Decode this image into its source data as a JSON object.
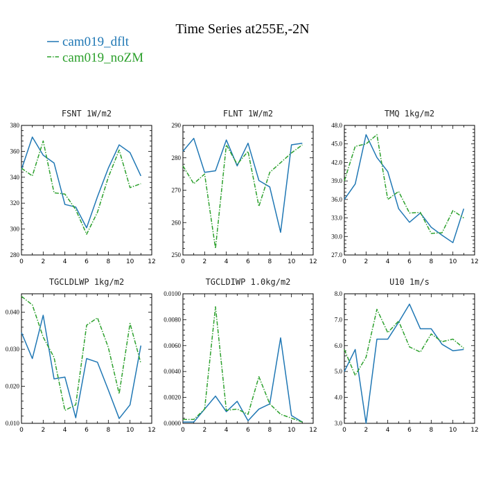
{
  "title": "Time Series at255E,-2N",
  "legend": [
    {
      "name": "cam019_dflt",
      "color": "#1f77b4",
      "dash": "solid"
    },
    {
      "name": "cam019_noZM",
      "color": "#2ca02c",
      "dash": "dashdot"
    }
  ],
  "chart_data": [
    {
      "type": "line",
      "title": "FSNT  1W/m2",
      "x": [
        0,
        1,
        2,
        3,
        4,
        5,
        6,
        7,
        8,
        9,
        10,
        11
      ],
      "xlim": [
        0,
        12
      ],
      "xticks": [
        0,
        2,
        4,
        6,
        8,
        10,
        12
      ],
      "xtick_labels": [
        "0",
        "2",
        "4",
        "6",
        "8",
        "10",
        "12"
      ],
      "ylim": [
        280,
        380
      ],
      "yticks": [
        280,
        300,
        320,
        340,
        360,
        380
      ],
      "ytick_labels": [
        "280",
        "300",
        "320",
        "340",
        "360",
        "380"
      ],
      "series": [
        {
          "name": "cam019_dflt",
          "values": [
            346,
            371,
            357,
            351,
            319,
            317,
            301,
            325,
            347,
            365,
            359,
            341
          ]
        },
        {
          "name": "cam019_noZM",
          "values": [
            347,
            341,
            368,
            328,
            327,
            315,
            296,
            313,
            340,
            361,
            332,
            335
          ]
        }
      ]
    },
    {
      "type": "line",
      "title": "FLNT  1W/m2",
      "x": [
        0,
        1,
        2,
        3,
        4,
        5,
        6,
        7,
        8,
        9,
        10,
        11
      ],
      "xlim": [
        0,
        12
      ],
      "xticks": [
        0,
        2,
        4,
        6,
        8,
        10,
        12
      ],
      "xtick_labels": [
        "0",
        "2",
        "4",
        "6",
        "8",
        "10",
        "12"
      ],
      "ylim": [
        250,
        290
      ],
      "yticks": [
        250,
        260,
        270,
        280,
        290
      ],
      "ytick_labels": [
        "250",
        "260",
        "270",
        "280",
        "290"
      ],
      "series": [
        {
          "name": "cam019_dflt",
          "values": [
            282,
            286,
            275.5,
            276,
            285.5,
            277.5,
            284.5,
            273,
            271,
            257,
            284,
            284.5
          ]
        },
        {
          "name": "cam019_noZM",
          "values": [
            277.5,
            272,
            275,
            252,
            284,
            278,
            282,
            265,
            275.5,
            278.5,
            281.5,
            284
          ]
        }
      ]
    },
    {
      "type": "line",
      "title": "TMQ  1kg/m2",
      "x": [
        0,
        1,
        2,
        3,
        4,
        5,
        6,
        7,
        8,
        9,
        10,
        11
      ],
      "xlim": [
        0,
        12
      ],
      "xticks": [
        0,
        2,
        4,
        6,
        8,
        10,
        12
      ],
      "xtick_labels": [
        "0",
        "2",
        "4",
        "6",
        "8",
        "10",
        "12"
      ],
      "ylim": [
        27,
        48
      ],
      "yticks": [
        27,
        30,
        33,
        36,
        39,
        42,
        45,
        48
      ],
      "ytick_labels": [
        "27.0",
        "30.0",
        "33.0",
        "36.0",
        "39.0",
        "42.0",
        "45.0",
        "48.0"
      ],
      "series": [
        {
          "name": "cam019_dflt",
          "values": [
            36,
            38.5,
            46.5,
            42.8,
            40.5,
            34.5,
            32.3,
            33.8,
            31.5,
            30.2,
            29,
            34.5
          ]
        },
        {
          "name": "cam019_noZM",
          "values": [
            39,
            44.6,
            45,
            46.5,
            36,
            37.3,
            33.8,
            33.9,
            30.5,
            30.6,
            34.2,
            33
          ]
        }
      ]
    },
    {
      "type": "line",
      "title": "TGCLDLWP  1kg/m2",
      "x": [
        0,
        1,
        2,
        3,
        4,
        5,
        6,
        7,
        8,
        9,
        10,
        11
      ],
      "xlim": [
        0,
        12
      ],
      "xticks": [
        0,
        2,
        4,
        6,
        8,
        10,
        12
      ],
      "xtick_labels": [
        "0",
        "2",
        "4",
        "6",
        "8",
        "10",
        "12"
      ],
      "ylim": [
        0.01,
        0.045
      ],
      "yticks": [
        0.01,
        0.02,
        0.03,
        0.04
      ],
      "ytick_labels": [
        "0.010",
        "0.020",
        "0.030",
        "0.040"
      ],
      "series": [
        {
          "name": "cam019_dflt",
          "values": [
            0.0345,
            0.0275,
            0.0392,
            0.022,
            0.0225,
            0.0115,
            0.0275,
            0.0265,
            0.019,
            0.0113,
            0.015,
            0.031
          ]
        },
        {
          "name": "cam019_noZM",
          "values": [
            0.0443,
            0.042,
            0.0333,
            0.0278,
            0.0135,
            0.015,
            0.0365,
            0.0385,
            0.0305,
            0.018,
            0.037,
            0.0262
          ]
        }
      ]
    },
    {
      "type": "line",
      "title": "TGCLDIWP  1.0kg/m2",
      "x": [
        0,
        1,
        2,
        3,
        4,
        5,
        6,
        7,
        8,
        9,
        10,
        11
      ],
      "xlim": [
        0,
        12
      ],
      "xticks": [
        0,
        2,
        4,
        6,
        8,
        10,
        12
      ],
      "xtick_labels": [
        "0",
        "2",
        "4",
        "6",
        "8",
        "10",
        "12"
      ],
      "ylim": [
        0,
        0.01
      ],
      "yticks": [
        0,
        0.002,
        0.004,
        0.006,
        0.008,
        0.01
      ],
      "ytick_labels": [
        "0.0000",
        "0.0020",
        "0.0040",
        "0.0060",
        "0.0080",
        "0.0100"
      ],
      "series": [
        {
          "name": "cam019_dflt",
          "values": [
            0.0001,
            0.0001,
            0.0011,
            0.0021,
            0.0009,
            0.0017,
            0.0002,
            0.0011,
            0.0015,
            0.0066,
            0.0006,
            0.0001
          ]
        },
        {
          "name": "cam019_noZM",
          "values": [
            0.0003,
            0.0003,
            0.0011,
            0.009,
            0.001,
            0.0011,
            0.0007,
            0.0036,
            0.0015,
            0.0007,
            0.0004,
            0.0001
          ]
        }
      ]
    },
    {
      "type": "line",
      "title": "U10  1m/s",
      "x": [
        0,
        1,
        2,
        3,
        4,
        5,
        6,
        7,
        8,
        9,
        10,
        11
      ],
      "xlim": [
        0,
        12
      ],
      "xticks": [
        0,
        2,
        4,
        6,
        8,
        10,
        12
      ],
      "xtick_labels": [
        "0",
        "2",
        "4",
        "6",
        "8",
        "10",
        "12"
      ],
      "ylim": [
        3,
        8
      ],
      "yticks": [
        3,
        4,
        5,
        6,
        7,
        8
      ],
      "ytick_labels": [
        "3.0",
        "4.0",
        "5.0",
        "6.0",
        "7.0",
        "8.0"
      ],
      "series": [
        {
          "name": "cam019_dflt",
          "values": [
            5,
            5.85,
            3,
            6.25,
            6.25,
            6.9,
            7.6,
            6.65,
            6.65,
            6.05,
            5.8,
            5.85
          ]
        },
        {
          "name": "cam019_noZM",
          "values": [
            5.85,
            4.85,
            5.55,
            7.4,
            6.5,
            6.95,
            5.95,
            5.75,
            6.45,
            6.15,
            6.25,
            5.9
          ]
        }
      ]
    }
  ]
}
